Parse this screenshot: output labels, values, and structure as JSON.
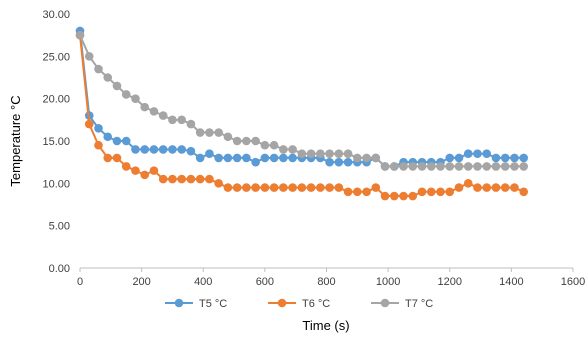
{
  "chart_data": {
    "type": "line",
    "title": "",
    "xlabel": "Time (s)",
    "ylabel": "Temperature °C",
    "xlim": [
      0,
      1600
    ],
    "ylim": [
      0,
      30
    ],
    "x_ticks": [
      0,
      200,
      400,
      600,
      800,
      1000,
      1200,
      1400,
      1600
    ],
    "x_tick_labels": [
      "0",
      "200",
      "400",
      "600",
      "800",
      "1000",
      "1200",
      "1400",
      "1600"
    ],
    "y_ticks": [
      0,
      5,
      10,
      15,
      20,
      25,
      30
    ],
    "y_tick_labels": [
      "0.00",
      "5.00",
      "10.00",
      "15.00",
      "20.00",
      "25.00",
      "30.00"
    ],
    "grid": false,
    "legend_position": "bottom",
    "x": [
      0,
      30,
      60,
      90,
      120,
      150,
      180,
      210,
      240,
      270,
      300,
      330,
      360,
      390,
      420,
      450,
      480,
      510,
      540,
      570,
      600,
      630,
      660,
      690,
      720,
      750,
      780,
      810,
      840,
      870,
      900,
      930,
      960,
      990,
      1020,
      1050,
      1080,
      1110,
      1140,
      1170,
      1200,
      1230,
      1260,
      1290,
      1320,
      1350,
      1380,
      1410,
      1440
    ],
    "series": [
      {
        "name": "T5 °C",
        "color": "#5B9BD5",
        "values": [
          28.0,
          18.0,
          16.5,
          15.5,
          15.0,
          15.0,
          14.0,
          14.0,
          14.0,
          14.0,
          14.0,
          14.0,
          13.8,
          13.0,
          13.5,
          13.0,
          13.0,
          13.0,
          13.0,
          12.5,
          13.0,
          13.0,
          13.0,
          13.0,
          13.0,
          13.0,
          13.0,
          12.5,
          12.5,
          12.5,
          12.5,
          12.5,
          13.0,
          12.0,
          12.0,
          12.5,
          12.5,
          12.5,
          12.5,
          12.5,
          13.0,
          13.0,
          13.5,
          13.5,
          13.5,
          13.0,
          13.0,
          13.0,
          13.0
        ]
      },
      {
        "name": "T6 °C",
        "color": "#ED7D31",
        "values": [
          27.5,
          17.0,
          14.5,
          13.0,
          13.0,
          12.0,
          11.5,
          11.0,
          11.5,
          10.5,
          10.5,
          10.5,
          10.5,
          10.5,
          10.5,
          10.0,
          9.5,
          9.5,
          9.5,
          9.5,
          9.5,
          9.5,
          9.5,
          9.5,
          9.5,
          9.5,
          9.5,
          9.5,
          9.5,
          9.0,
          9.0,
          9.0,
          9.5,
          8.5,
          8.5,
          8.5,
          8.5,
          9.0,
          9.0,
          9.0,
          9.0,
          9.5,
          10.0,
          9.5,
          9.5,
          9.5,
          9.5,
          9.5,
          9.0
        ]
      },
      {
        "name": "T7 °C",
        "color": "#A5A5A5",
        "values": [
          27.5,
          25.0,
          23.5,
          22.5,
          21.5,
          20.5,
          20.0,
          19.0,
          18.5,
          18.0,
          17.5,
          17.5,
          17.0,
          16.0,
          16.0,
          16.0,
          15.5,
          15.0,
          15.0,
          15.0,
          14.5,
          14.5,
          14.0,
          14.0,
          13.5,
          13.5,
          13.5,
          13.5,
          13.5,
          13.5,
          13.0,
          13.0,
          13.0,
          12.0,
          12.0,
          12.0,
          12.0,
          12.0,
          12.0,
          12.0,
          12.0,
          12.0,
          12.0,
          12.0,
          12.0,
          12.0,
          12.0,
          12.0,
          12.0
        ]
      }
    ]
  }
}
